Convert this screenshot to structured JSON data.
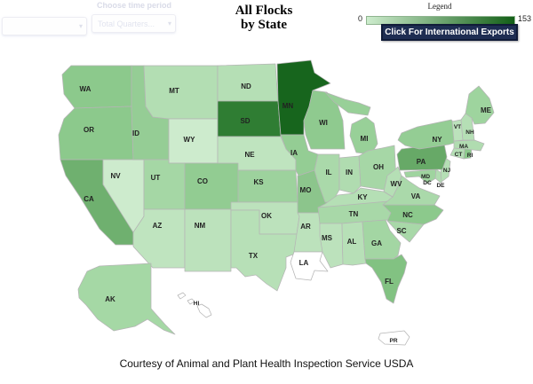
{
  "controls": {
    "time_period_label": "Choose time period",
    "time_period_value": "Total Quarters...",
    "left_dropdown_value": ""
  },
  "title": {
    "line1": "All Flocks",
    "line2": "by State"
  },
  "legend": {
    "label": "Legend",
    "min": "0",
    "max": "153",
    "scale_start": "#cdeccd",
    "scale_end": "#135f17"
  },
  "export_button": {
    "label": "Click For International Exports",
    "bg": "#1e2d52"
  },
  "caption": "Courtesy of Animal and Plant Health Inspection Service USDA",
  "chart_data": {
    "type": "choropleth",
    "title": "All Flocks by State",
    "region": "United States",
    "colorbar": {
      "min": 0,
      "max": 153,
      "low_color": "#cdeccd",
      "high_color": "#135f17"
    },
    "note": "State values encoded as green fill shade (0 = white/pale, 153 = darkest). MN is darkest (max); SD second; LA, HI, PR are white (0).",
    "states": [
      {
        "abbr": "WA",
        "fill": "#8cc98c"
      },
      {
        "abbr": "OR",
        "fill": "#8cc98c"
      },
      {
        "abbr": "CA",
        "fill": "#6fb06f"
      },
      {
        "abbr": "NV",
        "fill": "#cdebcd"
      },
      {
        "abbr": "ID",
        "fill": "#95cd95"
      },
      {
        "abbr": "MT",
        "fill": "#b3deb3"
      },
      {
        "abbr": "WY",
        "fill": "#cdebcd"
      },
      {
        "abbr": "UT",
        "fill": "#a5d7a5"
      },
      {
        "abbr": "CO",
        "fill": "#92cc92"
      },
      {
        "abbr": "AZ",
        "fill": "#bfe4bf"
      },
      {
        "abbr": "NM",
        "fill": "#bce2bc"
      },
      {
        "abbr": "ND",
        "fill": "#b5dfb5"
      },
      {
        "abbr": "SD",
        "fill": "#2f7d33"
      },
      {
        "abbr": "NE",
        "fill": "#bfe4bf"
      },
      {
        "abbr": "KS",
        "fill": "#9dd29d"
      },
      {
        "abbr": "OK",
        "fill": "#bce2bc"
      },
      {
        "abbr": "TX",
        "fill": "#b7e0b7"
      },
      {
        "abbr": "MN",
        "fill": "#17651d"
      },
      {
        "abbr": "IA",
        "fill": "#94cd94"
      },
      {
        "abbr": "MO",
        "fill": "#8cc58c"
      },
      {
        "abbr": "AR",
        "fill": "#bce2bc"
      },
      {
        "abbr": "LA",
        "fill": "#ffffff"
      },
      {
        "abbr": "WI",
        "fill": "#8fca8f"
      },
      {
        "abbr": "IL",
        "fill": "#aad9aa"
      },
      {
        "abbr": "IN",
        "fill": "#b0dcb0"
      },
      {
        "abbr": "MI",
        "fill": "#98d098"
      },
      {
        "abbr": "OH",
        "fill": "#a6d7a6"
      },
      {
        "abbr": "KY",
        "fill": "#b5dfb5"
      },
      {
        "abbr": "TN",
        "fill": "#a8d8a8"
      },
      {
        "abbr": "MS",
        "fill": "#bce2bc"
      },
      {
        "abbr": "AL",
        "fill": "#b7e0b7"
      },
      {
        "abbr": "GA",
        "fill": "#a3d6a3"
      },
      {
        "abbr": "FL",
        "fill": "#82c282"
      },
      {
        "abbr": "SC",
        "fill": "#a8d8a8"
      },
      {
        "abbr": "NC",
        "fill": "#8cc98c"
      },
      {
        "abbr": "VA",
        "fill": "#aad9aa"
      },
      {
        "abbr": "WV",
        "fill": "#b5dfb5"
      },
      {
        "abbr": "MD",
        "fill": "#9fd49f"
      },
      {
        "abbr": "DC",
        "fill": "#b0dcb0"
      },
      {
        "abbr": "DE",
        "fill": "#b0dcb0"
      },
      {
        "abbr": "NJ",
        "fill": "#b5dfb5"
      },
      {
        "abbr": "PA",
        "fill": "#67a967"
      },
      {
        "abbr": "NY",
        "fill": "#94cd94"
      },
      {
        "abbr": "CT",
        "fill": "#b5dfb5"
      },
      {
        "abbr": "RI",
        "fill": "#8cc98c"
      },
      {
        "abbr": "MA",
        "fill": "#b0dcb0"
      },
      {
        "abbr": "VT",
        "fill": "#bce2bc"
      },
      {
        "abbr": "NH",
        "fill": "#b5dfb5"
      },
      {
        "abbr": "ME",
        "fill": "#9ed49e"
      },
      {
        "abbr": "AK",
        "fill": "#a5d8a5"
      },
      {
        "abbr": "HI",
        "fill": "#ffffff"
      },
      {
        "abbr": "PR",
        "fill": "#ffffff"
      }
    ]
  }
}
